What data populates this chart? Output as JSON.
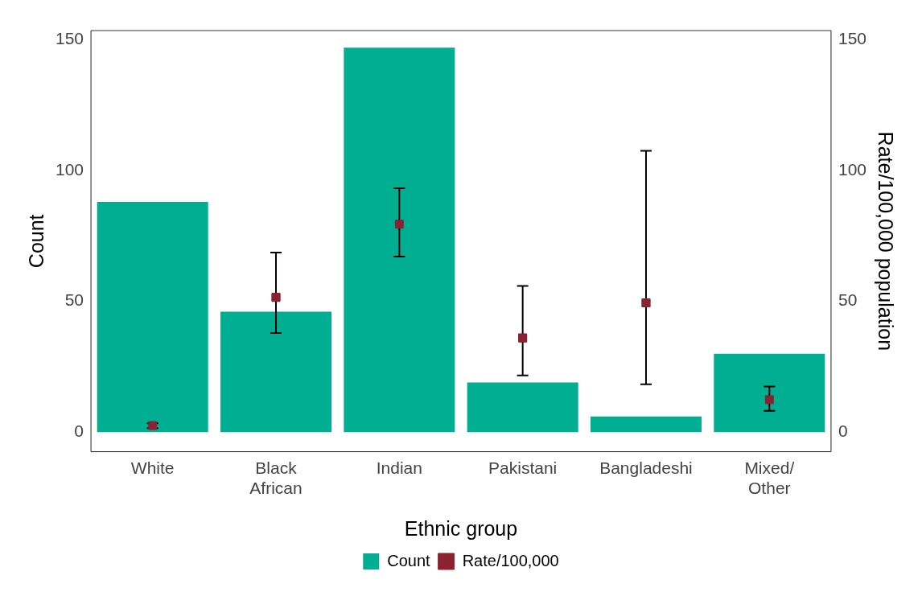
{
  "chart_data": {
    "type": "bar",
    "xlabel": "Ethnic group",
    "ylabel": "Count",
    "y2label": "Rate/100,000 population",
    "categories": [
      "White",
      "Black African",
      "Indian",
      "Pakistani",
      "Bangladeshi",
      "Mixed/ Other"
    ],
    "series": [
      {
        "name": "Count",
        "color": "#00ae91",
        "values": [
          88,
          46,
          147,
          19,
          6,
          30
        ]
      },
      {
        "name": "Rate/100,000",
        "type": "scatter",
        "axis": "y2",
        "color": "#8b2232",
        "values": [
          2.5,
          51.5,
          79.5,
          36,
          49.4,
          12.4
        ],
        "errors": [
          [
            1.5,
            3.4
          ],
          [
            37.9,
            68.6
          ],
          [
            67.1,
            93.2
          ],
          [
            21.7,
            55.9
          ],
          [
            18.3,
            107.5
          ],
          [
            8.1,
            17.4
          ]
        ]
      }
    ],
    "ylim": [
      -7.5,
      153.5
    ],
    "yticks": [
      0,
      50,
      100,
      150
    ],
    "y2lim": [
      -7.5,
      153.5
    ],
    "y2ticks": [
      0,
      50,
      100,
      150
    ],
    "grid": false,
    "legend": "bottom",
    "marker": "square"
  }
}
